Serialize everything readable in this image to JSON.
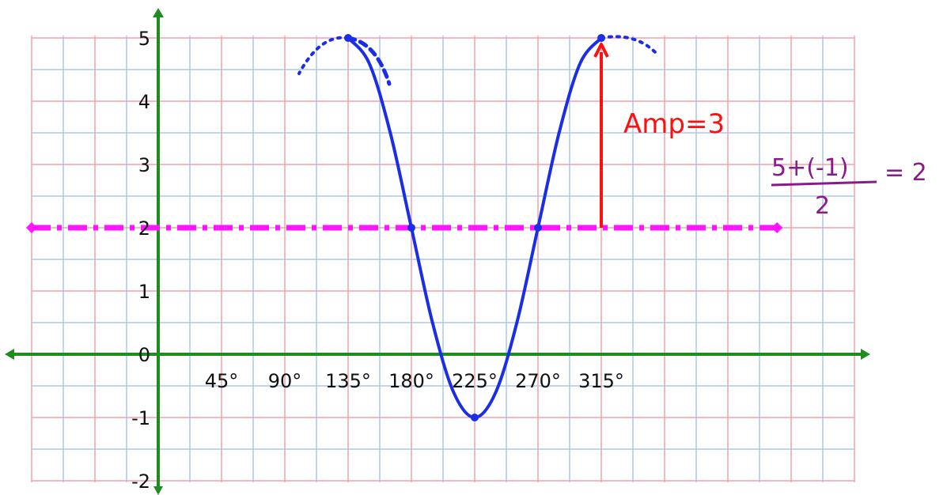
{
  "chart_data": {
    "type": "line",
    "title": "",
    "xlabel": "",
    "ylabel": "",
    "xlim": [
      -100,
      450
    ],
    "ylim": [
      -2.2,
      5.2
    ],
    "grid": true,
    "x_ticks": [
      {
        "value": 45,
        "label": "45°"
      },
      {
        "value": 90,
        "label": "90°"
      },
      {
        "value": 135,
        "label": "135°"
      },
      {
        "value": 180,
        "label": "180°"
      },
      {
        "value": 225,
        "label": "225°"
      },
      {
        "value": 270,
        "label": "270°"
      },
      {
        "value": 315,
        "label": "315°"
      }
    ],
    "y_ticks": [
      {
        "value": 5,
        "label": "5"
      },
      {
        "value": 4,
        "label": "4"
      },
      {
        "value": 3,
        "label": "3"
      },
      {
        "value": 2,
        "label": "2"
      },
      {
        "value": 1,
        "label": "1"
      },
      {
        "value": 0,
        "label": "0"
      },
      {
        "value": -1,
        "label": "-1"
      },
      {
        "value": -2,
        "label": "-2"
      }
    ],
    "series": [
      {
        "color": "#1a2ee8",
        "x": [
          135,
          150,
          165,
          180,
          195,
          210,
          225,
          240,
          255,
          270,
          285,
          300,
          315
        ],
        "y": [
          5,
          4.6,
          3.5,
          2,
          0.5,
          -0.6,
          -1,
          -0.6,
          0.5,
          2,
          3.5,
          4.6,
          5
        ]
      }
    ],
    "key_points": [
      {
        "x": 135,
        "y": 5
      },
      {
        "x": 180,
        "y": 2
      },
      {
        "x": 225,
        "y": -1
      },
      {
        "x": 270,
        "y": 2
      },
      {
        "x": 315,
        "y": 5
      }
    ],
    "midline": {
      "y": 2,
      "x_from": -90,
      "x_to": 440,
      "color": "#ff14ff"
    },
    "amplitude_arrow": {
      "x": 315,
      "y_from": 2,
      "y_to": 4.9,
      "color": "#ff1010"
    },
    "annotations": {
      "amp": {
        "text": "Amp=3",
        "color": "#ff1010"
      },
      "mid_numerator": {
        "text": "5+(-1)",
        "color": "#8a1a8a"
      },
      "mid_denominator": {
        "text": "2",
        "color": "#8a1a8a"
      },
      "mid_result": {
        "text": "= 2",
        "color": "#8a1a8a"
      }
    },
    "colors": {
      "axis": "#1f8c1f",
      "grid_red": "#f4a0a8",
      "grid_blue": "#a8c8ee"
    }
  }
}
